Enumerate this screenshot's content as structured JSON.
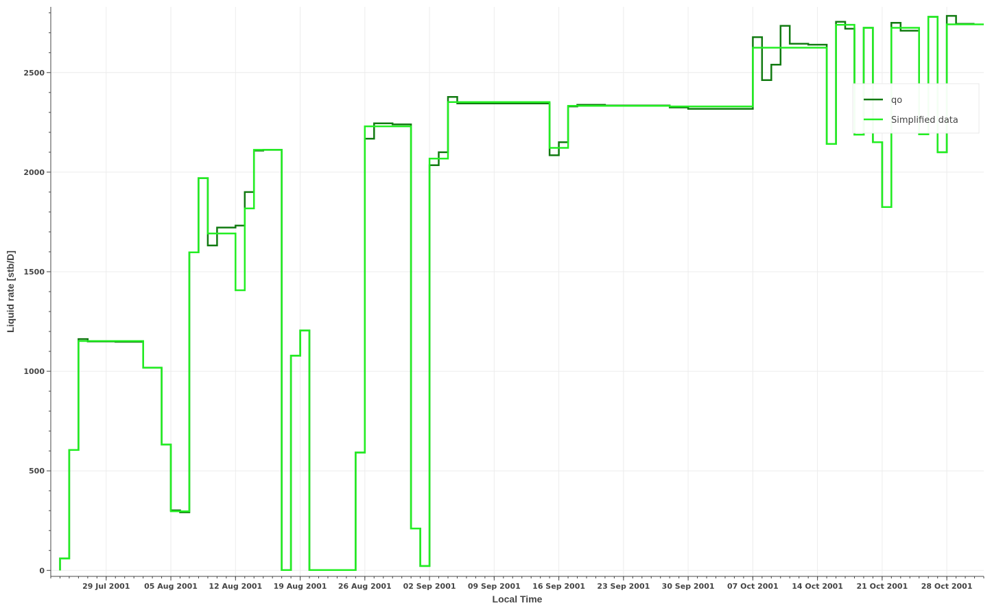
{
  "chart_data": {
    "type": "line",
    "xlabel": "Local Time",
    "ylabel": "Liquid rate [stb/D]",
    "x_ticks": [
      "29 Jul 2001",
      "05 Aug 2001",
      "12 Aug 2001",
      "19 Aug 2001",
      "26 Aug 2001",
      "02 Sep 2001",
      "09 Sep 2001",
      "16 Sep 2001",
      "23 Sep 2001",
      "30 Sep 2001",
      "07 Oct 2001",
      "14 Oct 2001",
      "21 Oct 2001",
      "28 Oct 2001"
    ],
    "y_ticks": [
      "0",
      "500",
      "1000",
      "1500",
      "2000",
      "2500"
    ],
    "xlim": [
      "2001-07-23",
      "2001-11-01"
    ],
    "ylim": [
      -30,
      2830
    ],
    "grid": true,
    "legend_position": "top-right",
    "series": [
      {
        "name": "qo",
        "color": "#117a11",
        "points": [
          [
            "2001-07-24",
            0
          ],
          [
            "2001-07-24",
            60
          ],
          [
            "2001-07-25",
            60
          ],
          [
            "2001-07-25",
            605
          ],
          [
            "2001-07-26",
            605
          ],
          [
            "2001-07-26",
            1162
          ],
          [
            "2001-07-27",
            1162
          ],
          [
            "2001-07-27",
            1150
          ],
          [
            "2001-07-30",
            1150
          ],
          [
            "2001-07-30",
            1148
          ],
          [
            "2001-08-02",
            1148
          ],
          [
            "2001-08-02",
            1018
          ],
          [
            "2001-08-04",
            1018
          ],
          [
            "2001-08-04",
            632
          ],
          [
            "2001-08-05",
            632
          ],
          [
            "2001-08-05",
            302
          ],
          [
            "2001-08-06",
            302
          ],
          [
            "2001-08-06",
            292
          ],
          [
            "2001-08-07",
            292
          ],
          [
            "2001-08-07",
            1597
          ],
          [
            "2001-08-08",
            1597
          ],
          [
            "2001-08-08",
            1970
          ],
          [
            "2001-08-09",
            1970
          ],
          [
            "2001-08-09",
            1632
          ],
          [
            "2001-08-10",
            1632
          ],
          [
            "2001-08-10",
            1722
          ],
          [
            "2001-08-12",
            1722
          ],
          [
            "2001-08-12",
            1732
          ],
          [
            "2001-08-13",
            1732
          ],
          [
            "2001-08-13",
            1900
          ],
          [
            "2001-08-14",
            1900
          ],
          [
            "2001-08-14",
            2108
          ],
          [
            "2001-08-15",
            2108
          ],
          [
            "2001-08-15",
            2112
          ],
          [
            "2001-08-17",
            2112
          ],
          [
            "2001-08-17",
            2
          ],
          [
            "2001-08-18",
            2
          ],
          [
            "2001-08-18",
            1078
          ],
          [
            "2001-08-19",
            1078
          ],
          [
            "2001-08-19",
            1205
          ],
          [
            "2001-08-20",
            1205
          ],
          [
            "2001-08-20",
            2
          ],
          [
            "2001-08-25",
            2
          ],
          [
            "2001-08-25",
            592
          ],
          [
            "2001-08-26",
            592
          ],
          [
            "2001-08-26",
            2168
          ],
          [
            "2001-08-27",
            2168
          ],
          [
            "2001-08-27",
            2245
          ],
          [
            "2001-08-29",
            2245
          ],
          [
            "2001-08-29",
            2240
          ],
          [
            "2001-08-31",
            2240
          ],
          [
            "2001-08-31",
            210
          ],
          [
            "2001-09-01",
            210
          ],
          [
            "2001-09-01",
            22
          ],
          [
            "2001-09-02",
            22
          ],
          [
            "2001-09-02",
            2035
          ],
          [
            "2001-09-03",
            2035
          ],
          [
            "2001-09-03",
            2100
          ],
          [
            "2001-09-04",
            2100
          ],
          [
            "2001-09-04",
            2378
          ],
          [
            "2001-09-05",
            2378
          ],
          [
            "2001-09-05",
            2345
          ],
          [
            "2001-09-15",
            2345
          ],
          [
            "2001-09-15",
            2085
          ],
          [
            "2001-09-16",
            2085
          ],
          [
            "2001-09-16",
            2150
          ],
          [
            "2001-09-17",
            2150
          ],
          [
            "2001-09-17",
            2330
          ],
          [
            "2001-09-18",
            2330
          ],
          [
            "2001-09-18",
            2338
          ],
          [
            "2001-09-21",
            2338
          ],
          [
            "2001-09-21",
            2335
          ],
          [
            "2001-09-28",
            2335
          ],
          [
            "2001-09-28",
            2325
          ],
          [
            "2001-09-30",
            2325
          ],
          [
            "2001-09-30",
            2318
          ],
          [
            "2001-10-07",
            2318
          ],
          [
            "2001-10-07",
            2678
          ],
          [
            "2001-10-08",
            2678
          ],
          [
            "2001-10-08",
            2462
          ],
          [
            "2001-10-09",
            2462
          ],
          [
            "2001-10-09",
            2540
          ],
          [
            "2001-10-10",
            2540
          ],
          [
            "2001-10-10",
            2735
          ],
          [
            "2001-10-11",
            2735
          ],
          [
            "2001-10-11",
            2645
          ],
          [
            "2001-10-13",
            2645
          ],
          [
            "2001-10-13",
            2640
          ],
          [
            "2001-10-15",
            2640
          ],
          [
            "2001-10-15",
            2142
          ],
          [
            "2001-10-16",
            2142
          ],
          [
            "2001-10-16",
            2755
          ],
          [
            "2001-10-17",
            2755
          ],
          [
            "2001-10-17",
            2720
          ],
          [
            "2001-10-18",
            2720
          ],
          [
            "2001-10-18",
            2188
          ],
          [
            "2001-10-19",
            2188
          ],
          [
            "2001-10-19",
            2725
          ],
          [
            "2001-10-20",
            2725
          ],
          [
            "2001-10-20",
            2150
          ],
          [
            "2001-10-21",
            2150
          ],
          [
            "2001-10-21",
            1825
          ],
          [
            "2001-10-22",
            1825
          ],
          [
            "2001-10-22",
            2750
          ],
          [
            "2001-10-23",
            2750
          ],
          [
            "2001-10-23",
            2710
          ],
          [
            "2001-10-25",
            2710
          ],
          [
            "2001-10-25",
            2190
          ],
          [
            "2001-10-26",
            2190
          ],
          [
            "2001-10-26",
            2780
          ],
          [
            "2001-10-27",
            2780
          ],
          [
            "2001-10-27",
            2100
          ],
          [
            "2001-10-28",
            2100
          ],
          [
            "2001-10-28",
            2785
          ],
          [
            "2001-10-29",
            2785
          ],
          [
            "2001-10-29",
            2745
          ],
          [
            "2001-10-31",
            2745
          ]
        ]
      },
      {
        "name": "Simplified data",
        "color": "#22ee22",
        "points": [
          [
            "2001-07-24",
            0
          ],
          [
            "2001-07-24",
            60
          ],
          [
            "2001-07-25",
            60
          ],
          [
            "2001-07-25",
            605
          ],
          [
            "2001-07-26",
            605
          ],
          [
            "2001-07-26",
            1152
          ],
          [
            "2001-08-02",
            1152
          ],
          [
            "2001-08-02",
            1018
          ],
          [
            "2001-08-04",
            1018
          ],
          [
            "2001-08-04",
            632
          ],
          [
            "2001-08-05",
            632
          ],
          [
            "2001-08-05",
            297
          ],
          [
            "2001-08-07",
            297
          ],
          [
            "2001-08-07",
            1597
          ],
          [
            "2001-08-08",
            1597
          ],
          [
            "2001-08-08",
            1970
          ],
          [
            "2001-08-09",
            1970
          ],
          [
            "2001-08-09",
            1692
          ],
          [
            "2001-08-12",
            1692
          ],
          [
            "2001-08-12",
            1407
          ],
          [
            "2001-08-13",
            1407
          ],
          [
            "2001-08-13",
            1818
          ],
          [
            "2001-08-14",
            1818
          ],
          [
            "2001-08-14",
            2112
          ],
          [
            "2001-08-17",
            2112
          ],
          [
            "2001-08-17",
            2
          ],
          [
            "2001-08-18",
            2
          ],
          [
            "2001-08-18",
            1078
          ],
          [
            "2001-08-19",
            1078
          ],
          [
            "2001-08-19",
            1205
          ],
          [
            "2001-08-20",
            1205
          ],
          [
            "2001-08-20",
            2
          ],
          [
            "2001-08-25",
            2
          ],
          [
            "2001-08-25",
            592
          ],
          [
            "2001-08-26",
            592
          ],
          [
            "2001-08-26",
            2230
          ],
          [
            "2001-08-31",
            2230
          ],
          [
            "2001-08-31",
            210
          ],
          [
            "2001-09-01",
            210
          ],
          [
            "2001-09-01",
            22
          ],
          [
            "2001-09-02",
            22
          ],
          [
            "2001-09-02",
            2068
          ],
          [
            "2001-09-04",
            2068
          ],
          [
            "2001-09-04",
            2352
          ],
          [
            "2001-09-15",
            2352
          ],
          [
            "2001-09-15",
            2122
          ],
          [
            "2001-09-17",
            2122
          ],
          [
            "2001-09-17",
            2333
          ],
          [
            "2001-09-28",
            2333
          ],
          [
            "2001-09-28",
            2330
          ],
          [
            "2001-10-07",
            2330
          ],
          [
            "2001-10-07",
            2625
          ],
          [
            "2001-10-15",
            2625
          ],
          [
            "2001-10-15",
            2142
          ],
          [
            "2001-10-16",
            2142
          ],
          [
            "2001-10-16",
            2740
          ],
          [
            "2001-10-18",
            2740
          ],
          [
            "2001-10-18",
            2188
          ],
          [
            "2001-10-19",
            2188
          ],
          [
            "2001-10-19",
            2725
          ],
          [
            "2001-10-20",
            2725
          ],
          [
            "2001-10-20",
            2150
          ],
          [
            "2001-10-21",
            2150
          ],
          [
            "2001-10-21",
            1825
          ],
          [
            "2001-10-22",
            1825
          ],
          [
            "2001-10-22",
            2725
          ],
          [
            "2001-10-25",
            2725
          ],
          [
            "2001-10-25",
            2190
          ],
          [
            "2001-10-26",
            2190
          ],
          [
            "2001-10-26",
            2780
          ],
          [
            "2001-10-27",
            2780
          ],
          [
            "2001-10-27",
            2100
          ],
          [
            "2001-10-28",
            2100
          ],
          [
            "2001-10-28",
            2742
          ],
          [
            "2001-11-01",
            2742
          ]
        ]
      }
    ]
  }
}
